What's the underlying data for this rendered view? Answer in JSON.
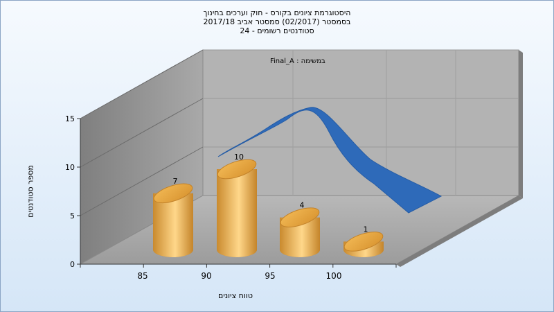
{
  "header": {
    "title_line1": "היסטוגרמת ציונים בקורס - חוק וערכים בחינוך",
    "title_line2": "בסמסטר  (02/2017)  סמסטר אביב 2017/18",
    "title_line3": "סטודנטים רשומים - 24"
  },
  "legend": {
    "text": "במשימה : Final_A"
  },
  "chart_data": {
    "type": "bar",
    "categories": [
      "85",
      "90",
      "95",
      "100"
    ],
    "values": [
      7,
      10,
      4,
      1
    ],
    "ylabel": "מספר סטודנטים",
    "xlabel": "טווח ציונים",
    "ylim": [
      0,
      15
    ],
    "yticks": [
      0,
      5,
      10,
      15
    ],
    "grid": true,
    "bar_color": "#e8a94a",
    "curve": {
      "type": "area",
      "color": "#2e6ab9"
    }
  }
}
